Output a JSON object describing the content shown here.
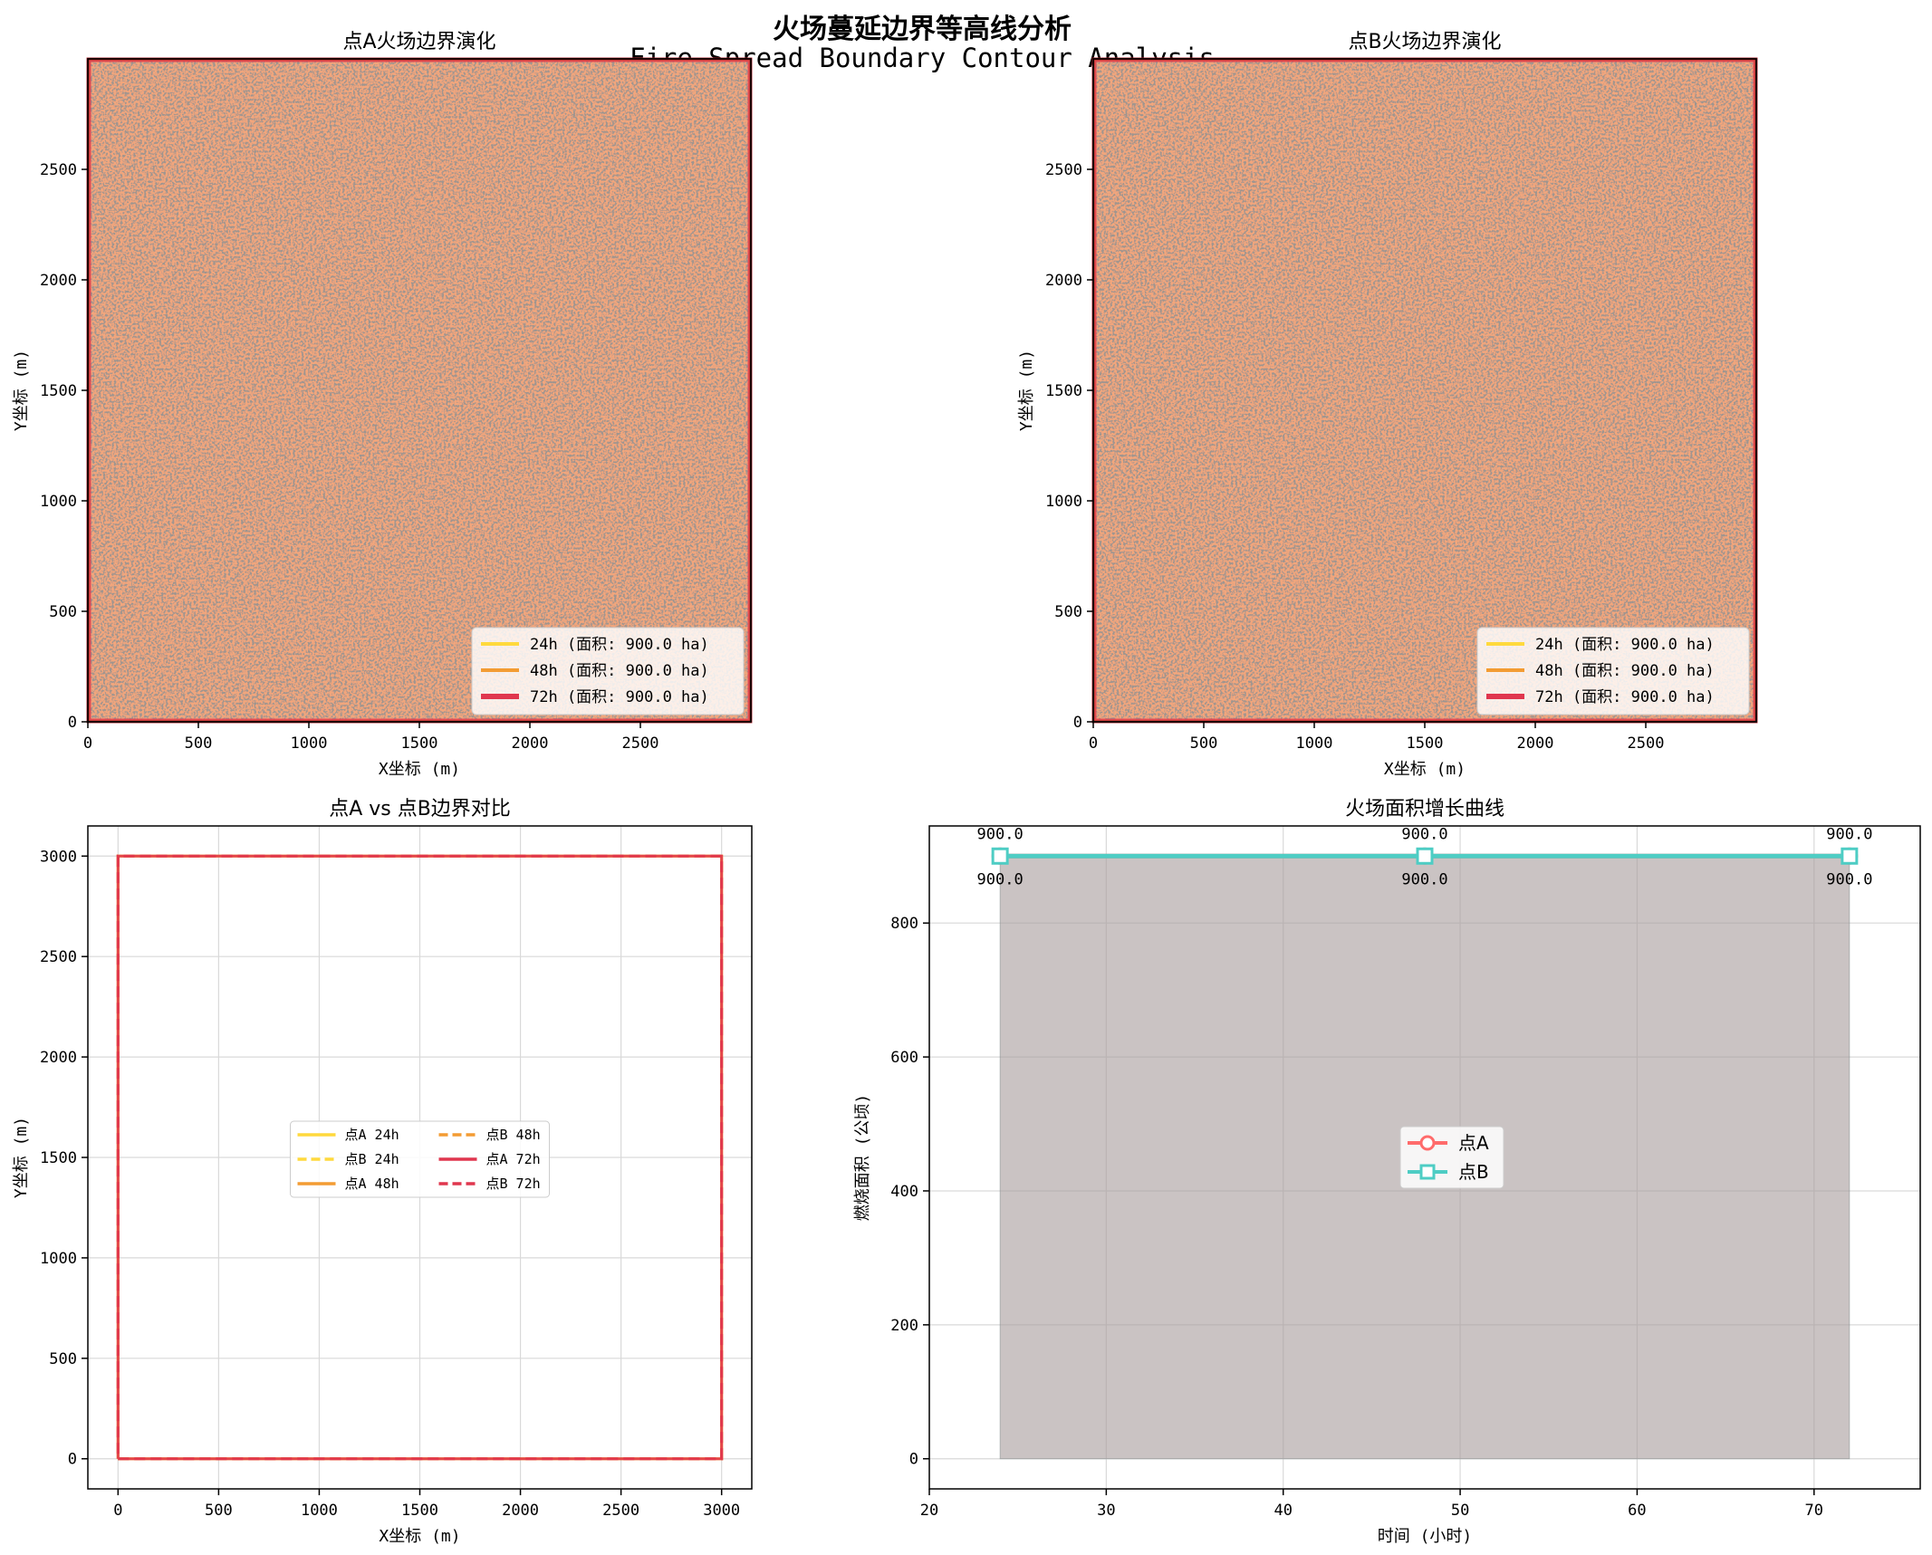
{
  "figure": {
    "title_cn": "火场蔓延边界等高线分析",
    "title_en": "Fire Spread Boundary Contour Analysis"
  },
  "colors": {
    "h24": "#FFD93D",
    "h48": "#F39C33",
    "h72": "#E0364E",
    "burn_texture_light": "#F2A67B",
    "burn_texture_dark": "#9E958F",
    "fire_border": "#7A1010",
    "pointA": "#FF6B6B",
    "pointB": "#4ECDC4",
    "area_fill": "#95A5A6"
  },
  "chart_data": [
    {
      "id": "mapA",
      "type": "heatmap",
      "title": "点A火场边界演化",
      "xlabel": "X坐标 (m)",
      "ylabel": "Y坐标 (m)",
      "xlim": [
        0,
        3000
      ],
      "ylim": [
        0,
        3000
      ],
      "xticks": [
        0,
        500,
        1000,
        1500,
        2000,
        2500
      ],
      "yticks": [
        0,
        500,
        1000,
        1500,
        2000,
        2500
      ],
      "legend_position": "lower right",
      "legend": [
        {
          "label": "24h (面积: 900.0 ha)",
          "color_key": "h24",
          "width": 4
        },
        {
          "label": "48h (面积: 900.0 ha)",
          "color_key": "h48",
          "width": 4
        },
        {
          "label": "72h (面积: 900.0 ha)",
          "color_key": "h72",
          "width": 6
        }
      ]
    },
    {
      "id": "mapB",
      "type": "heatmap",
      "title": "点B火场边界演化",
      "xlabel": "X坐标 (m)",
      "ylabel": "Y坐标 (m)",
      "xlim": [
        0,
        3000
      ],
      "ylim": [
        0,
        3000
      ],
      "xticks": [
        0,
        500,
        1000,
        1500,
        2000,
        2500
      ],
      "yticks": [
        0,
        500,
        1000,
        1500,
        2000,
        2500
      ],
      "legend_position": "lower right",
      "legend": [
        {
          "label": "24h (面积: 900.0 ha)",
          "color_key": "h24",
          "width": 4
        },
        {
          "label": "48h (面积: 900.0 ha)",
          "color_key": "h48",
          "width": 4
        },
        {
          "label": "72h (面积: 900.0 ha)",
          "color_key": "h72",
          "width": 6
        }
      ]
    },
    {
      "id": "compare",
      "type": "line",
      "title": "点A vs 点B边界对比",
      "xlabel": "X坐标 (m)",
      "ylabel": "Y坐标 (m)",
      "xlim": [
        -150,
        3150
      ],
      "ylim": [
        -150,
        3150
      ],
      "xticks": [
        0,
        500,
        1000,
        1500,
        2000,
        2500,
        3000
      ],
      "yticks": [
        0,
        500,
        1000,
        1500,
        2000,
        2500,
        3000
      ],
      "grid": true,
      "legend_position": "center",
      "boundary": {
        "x": [
          0,
          3000,
          3000,
          0,
          0
        ],
        "y": [
          0,
          0,
          3000,
          3000,
          0
        ]
      },
      "series": [
        {
          "name": "点A 24h",
          "color_key": "h24",
          "dashed": false
        },
        {
          "name": "点B 24h",
          "color_key": "h24",
          "dashed": true
        },
        {
          "name": "点A 48h",
          "color_key": "h48",
          "dashed": false
        },
        {
          "name": "点B 48h",
          "color_key": "h48",
          "dashed": true
        },
        {
          "name": "点A 72h",
          "color_key": "h72",
          "dashed": false
        },
        {
          "name": "点B 72h",
          "color_key": "h72",
          "dashed": true
        }
      ]
    },
    {
      "id": "growth",
      "type": "line",
      "title": "火场面积增长曲线",
      "xlabel": "时间 (小时)",
      "ylabel": "燃烧面积 (公顷)",
      "xlim": [
        20,
        76
      ],
      "ylim": [
        -45,
        945
      ],
      "xticks": [
        20,
        30,
        40,
        50,
        60,
        70
      ],
      "yticks": [
        0,
        200,
        400,
        600,
        800
      ],
      "grid": true,
      "legend_position": "center",
      "x": [
        24,
        48,
        72
      ],
      "series": [
        {
          "name": "点A",
          "values": [
            900.0,
            900.0,
            900.0
          ],
          "color_key": "pointA",
          "marker": "circle",
          "labels": [
            "900.0",
            "900.0",
            "900.0"
          ]
        },
        {
          "name": "点B",
          "values": [
            900.0,
            900.0,
            900.0
          ],
          "color_key": "pointB",
          "marker": "square",
          "labels": [
            "900.0",
            "900.0",
            "900.0"
          ]
        }
      ]
    }
  ]
}
